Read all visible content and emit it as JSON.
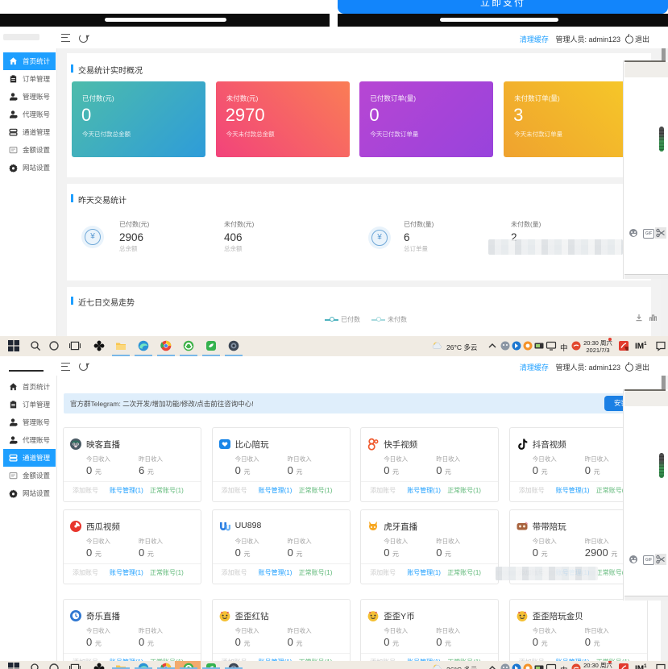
{
  "phone": {
    "pay_button": "立即支付"
  },
  "header": {
    "clear_cache": "清理缓存",
    "admin_label": "管理人员: admin123",
    "logout": "退出"
  },
  "sidebar": {
    "items": [
      {
        "label": "首页统计",
        "icon": "home-icon"
      },
      {
        "label": "订单管理",
        "icon": "order-icon"
      },
      {
        "label": "管理账号",
        "icon": "admin-user-icon"
      },
      {
        "label": "代理账号",
        "icon": "agent-user-icon"
      },
      {
        "label": "通道管理",
        "icon": "channel-icon"
      },
      {
        "label": "金额设置",
        "icon": "money-icon"
      },
      {
        "label": "网站设置",
        "icon": "gear-icon"
      }
    ],
    "win1_active_index": 0,
    "win2_active_index": 4
  },
  "win1": {
    "realtime": {
      "title": "交易统计实时概况",
      "cards": [
        {
          "label": "已付数(元)",
          "value": "0",
          "sub": "今天已付款总金额",
          "color_from": "#4dbcab",
          "color_to": "#2e9cd9",
          "angle": "135deg"
        },
        {
          "label": "未付数(元)",
          "value": "2970",
          "sub": "今天未付款总金额",
          "color_from": "#fa7d55",
          "color_to": "#f2437b",
          "angle": "225deg"
        },
        {
          "label": "已付数订单(量)",
          "value": "0",
          "sub": "今天已付款订单量",
          "color_from": "#b746d3",
          "color_to": "#9843dc",
          "angle": "135deg"
        },
        {
          "label": "未付数订单(量)",
          "value": "3",
          "sub": "今天未付款订单量",
          "color_from": "#f6c928",
          "color_to": "#efa22f",
          "angle": "225deg"
        }
      ]
    },
    "yesterday": {
      "title": "昨天交易统计",
      "stats": [
        {
          "label": "已付数(元)",
          "value": "2906",
          "sub": "总余额"
        },
        {
          "label": "未付数(元)",
          "value": "406",
          "sub": "总余额"
        },
        {
          "label": "已付数(量)",
          "value": "6",
          "sub": "总订单量"
        },
        {
          "label": "未付数(量)",
          "value": "2",
          "sub": ""
        }
      ]
    },
    "trend": {
      "title": "近七日交易走势",
      "legend": [
        {
          "label": "已付数",
          "color": "#4fb3bf"
        },
        {
          "label": "未付数",
          "color": "#a8dade"
        }
      ]
    }
  },
  "chart_data": {
    "type": "line",
    "title": "近七日交易走势",
    "series": [
      {
        "name": "已付数",
        "values": []
      },
      {
        "name": "未付数",
        "values": []
      }
    ],
    "note": "legend only visible; plot area hidden below screenshot edge"
  },
  "taskbar": {
    "weather_text": "26°C 多云",
    "ime_text": "中",
    "time": "20:30 周六",
    "date": "2021/7/3",
    "im_text": "IM"
  },
  "win2": {
    "notice": {
      "text": "官方群Telegram: 二次开发/增加功能/修改/点击前往咨询中心!",
      "button": "安装更新"
    },
    "card_labels": {
      "today": "今日收入",
      "yesterday": "昨日收入",
      "unit": "元",
      "add": "添加账号",
      "manage": "账号管理(1)",
      "normal": "正常账号(1)"
    },
    "channels": [
      {
        "name": "映客直播",
        "today": "0",
        "yesterday": "6",
        "icon": "inke-icon"
      },
      {
        "name": "比心陪玩",
        "today": "0",
        "yesterday": "0",
        "icon": "bixin-icon"
      },
      {
        "name": "快手视频",
        "today": "0",
        "yesterday": "0",
        "icon": "kuaishou-icon"
      },
      {
        "name": "抖音视频",
        "today": "0",
        "yesterday": "0",
        "icon": "douyin-icon"
      },
      {
        "name": "西瓜视频",
        "today": "0",
        "yesterday": "0",
        "icon": "xigua-icon"
      },
      {
        "name": "UU898",
        "today": "0",
        "yesterday": "0",
        "icon": "uu898-icon"
      },
      {
        "name": "虎牙直播",
        "today": "0",
        "yesterday": "0",
        "icon": "huya-icon"
      },
      {
        "name": "带带陪玩",
        "today": "0",
        "yesterday": "2900",
        "icon": "daidai-icon"
      },
      {
        "name": "奇乐直播",
        "today": "0",
        "yesterday": "0",
        "icon": "qile-icon"
      },
      {
        "name": "歪歪红钻",
        "today": "0",
        "yesterday": "0",
        "icon": "yy-icon"
      },
      {
        "name": "歪歪Y币",
        "today": "0",
        "yesterday": "0",
        "icon": "yy-icon"
      },
      {
        "name": "歪歪陪玩金贝",
        "today": "0",
        "yesterday": "0",
        "icon": "yy-icon"
      }
    ]
  },
  "colors": {
    "accent_blue": "#1E9FFF",
    "button_blue": "#1b7fe4",
    "pay_blue": "#1285fb",
    "green": "#5FB878",
    "taskbar_bg": "#f0ebe3",
    "body_grey": "#f2f2f2"
  }
}
